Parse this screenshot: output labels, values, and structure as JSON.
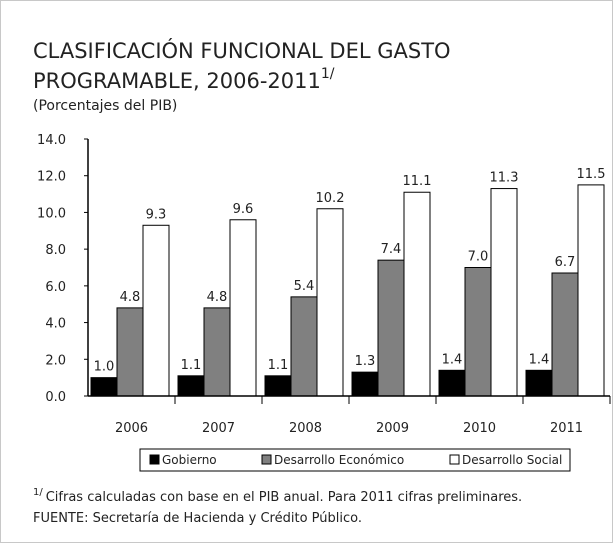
{
  "chart_data": {
    "type": "bar",
    "title": [
      "CLASIFICACIÓN FUNCIONAL DEL GASTO",
      "PROGRAMABLE, 2006-2011"
    ],
    "title_note": "1/",
    "subtitle": "(Porcentajes del PIB)",
    "categories": [
      "2006",
      "2007",
      "2008",
      "2009",
      "2010",
      "2011"
    ],
    "series": [
      {
        "name": "Gobierno",
        "color": "#000000",
        "values": [
          1.0,
          1.1,
          1.1,
          1.3,
          1.4,
          1.4
        ],
        "value_labels": [
          "1.0",
          "1.1",
          "1.1",
          "1.3",
          "1.4",
          "1.4"
        ]
      },
      {
        "name": "Desarrollo Económico",
        "color": "#808080",
        "values": [
          4.8,
          4.8,
          5.4,
          7.4,
          7.0,
          6.7
        ],
        "value_labels": [
          "4.8",
          "4.8",
          "5.4",
          "7.4",
          "7.0",
          "6.7"
        ]
      },
      {
        "name": "Desarrollo Social",
        "color": "#ffffff",
        "values": [
          9.3,
          9.6,
          10.2,
          11.1,
          11.3,
          11.5
        ],
        "value_labels": [
          "9.3",
          "9.6",
          "10.2",
          "11.1",
          "11.3",
          "11.5"
        ]
      }
    ],
    "ylim": [
      0,
      14
    ],
    "yticks": [
      {
        "value": 0,
        "label": "0.0"
      },
      {
        "value": 2,
        "label": "2.0"
      },
      {
        "value": 4,
        "label": "4.0"
      },
      {
        "value": 6,
        "label": "6.0"
      },
      {
        "value": 8,
        "label": "8.0"
      },
      {
        "value": 10,
        "label": "10.0"
      },
      {
        "value": 12,
        "label": "12.0"
      },
      {
        "value": 14,
        "label": "14.0"
      }
    ],
    "grid": false,
    "legend": "bottom",
    "footnote_marker": "1/",
    "footnote": "Cifras calculadas con base  en el PIB anual. Para 2011 cifras preliminares.",
    "source": "FUENTE: Secretaría de Hacienda y Crédito Público."
  }
}
